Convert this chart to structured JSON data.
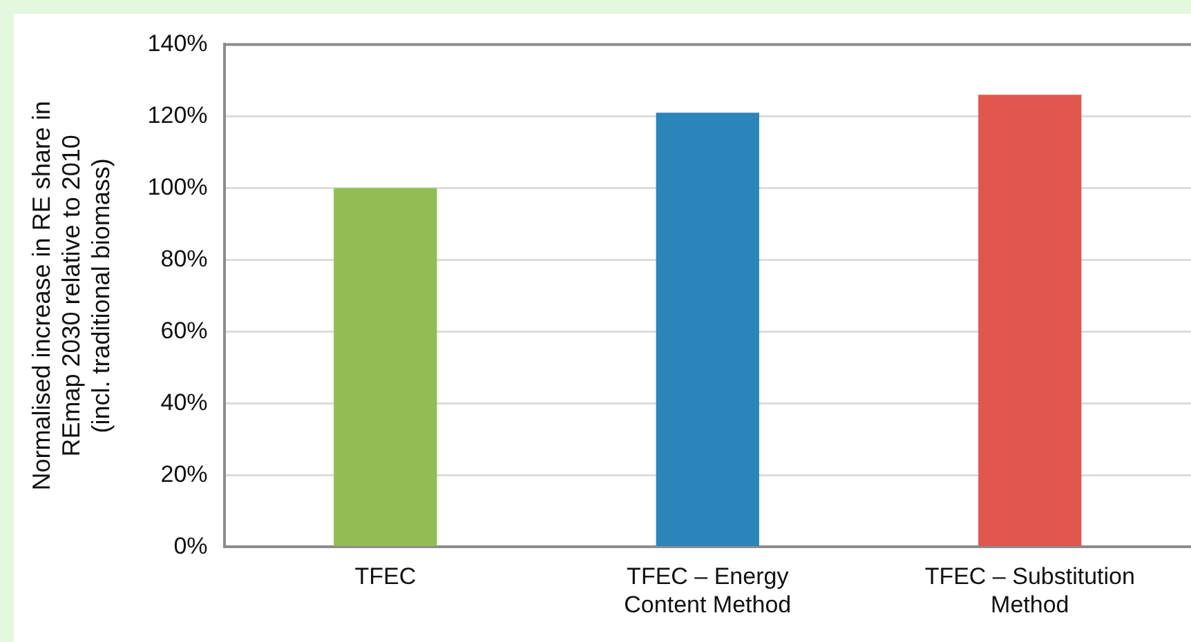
{
  "chart_data": {
    "type": "bar",
    "ylabel": "Normalised increase in RE share in\nREmap 2030 relative to 2010\n(incl. traditional biomass)",
    "categories": [
      "TFEC",
      "TFEC – Energy\nContent Method",
      "TFEC – Substitution\nMethod"
    ],
    "values": [
      100,
      121,
      126
    ],
    "colors": [
      "#92bd52",
      "#2a85ba",
      "#e1574d"
    ],
    "ylim": [
      0,
      140
    ],
    "yticks": [
      {
        "value": 0,
        "label": "0%"
      },
      {
        "value": 20,
        "label": "20%"
      },
      {
        "value": 40,
        "label": "40%"
      },
      {
        "value": 60,
        "label": "60%"
      },
      {
        "value": 80,
        "label": "80%"
      },
      {
        "value": 100,
        "label": "100%"
      },
      {
        "value": 120,
        "label": "120%"
      },
      {
        "value": 140,
        "label": "140%"
      }
    ],
    "grid": "y"
  }
}
